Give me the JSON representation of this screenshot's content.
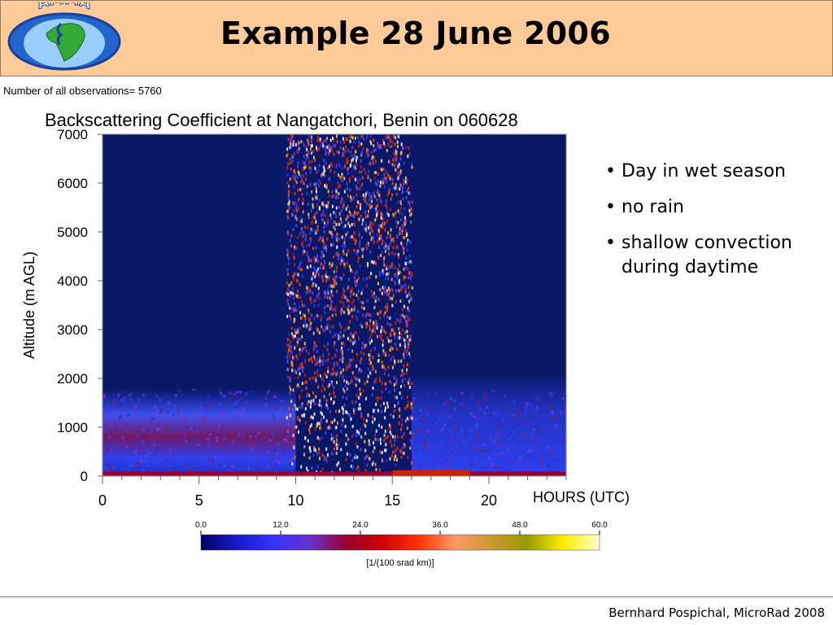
{
  "header": {
    "title": "Example 28 June 2006",
    "logo_text": "AMMA",
    "background_color": "#ffcc99"
  },
  "observations_label": "Number of all observations= 5760",
  "chart_data": {
    "type": "heatmap",
    "title": "Backscattering Coefficient at Nangatchori, Benin on 060628",
    "xlabel": "HOURS (UTC)",
    "ylabel": "Altitude (m AGL)",
    "xlim": [
      0,
      24
    ],
    "ylim": [
      0,
      7000
    ],
    "x_ticks": [
      0,
      5,
      10,
      15,
      20
    ],
    "y_ticks": [
      0,
      1000,
      2000,
      3000,
      4000,
      5000,
      6000,
      7000
    ],
    "colorbar": {
      "min": 0,
      "max": 60,
      "ticks": [
        "0.0",
        "12.0",
        "24.0",
        "36.0",
        "48.0",
        "60.0"
      ],
      "unit": "[1/(100 srad km)]",
      "colors": [
        "#000066",
        "#1a1acc",
        "#3333ff",
        "#6633cc",
        "#990033",
        "#cc0000",
        "#ff3300",
        "#ff9966",
        "#cc9933",
        "#999900",
        "#ffee00",
        "#ffffcc"
      ]
    },
    "background_color": "#0a1766",
    "layers": [
      {
        "hours": [
          0,
          10
        ],
        "altitude": [
          0,
          1800
        ]
      },
      {
        "hours": [
          9.5,
          16
        ],
        "altitude": [
          0,
          7000
        ]
      },
      {
        "hours": [
          16,
          24
        ],
        "altitude": [
          0,
          2100
        ]
      }
    ]
  },
  "bullets": [
    "Day in wet season",
    "no rain",
    "shallow convection during daytime"
  ],
  "footer": "Bernhard Pospichal, MicroRad 2008"
}
